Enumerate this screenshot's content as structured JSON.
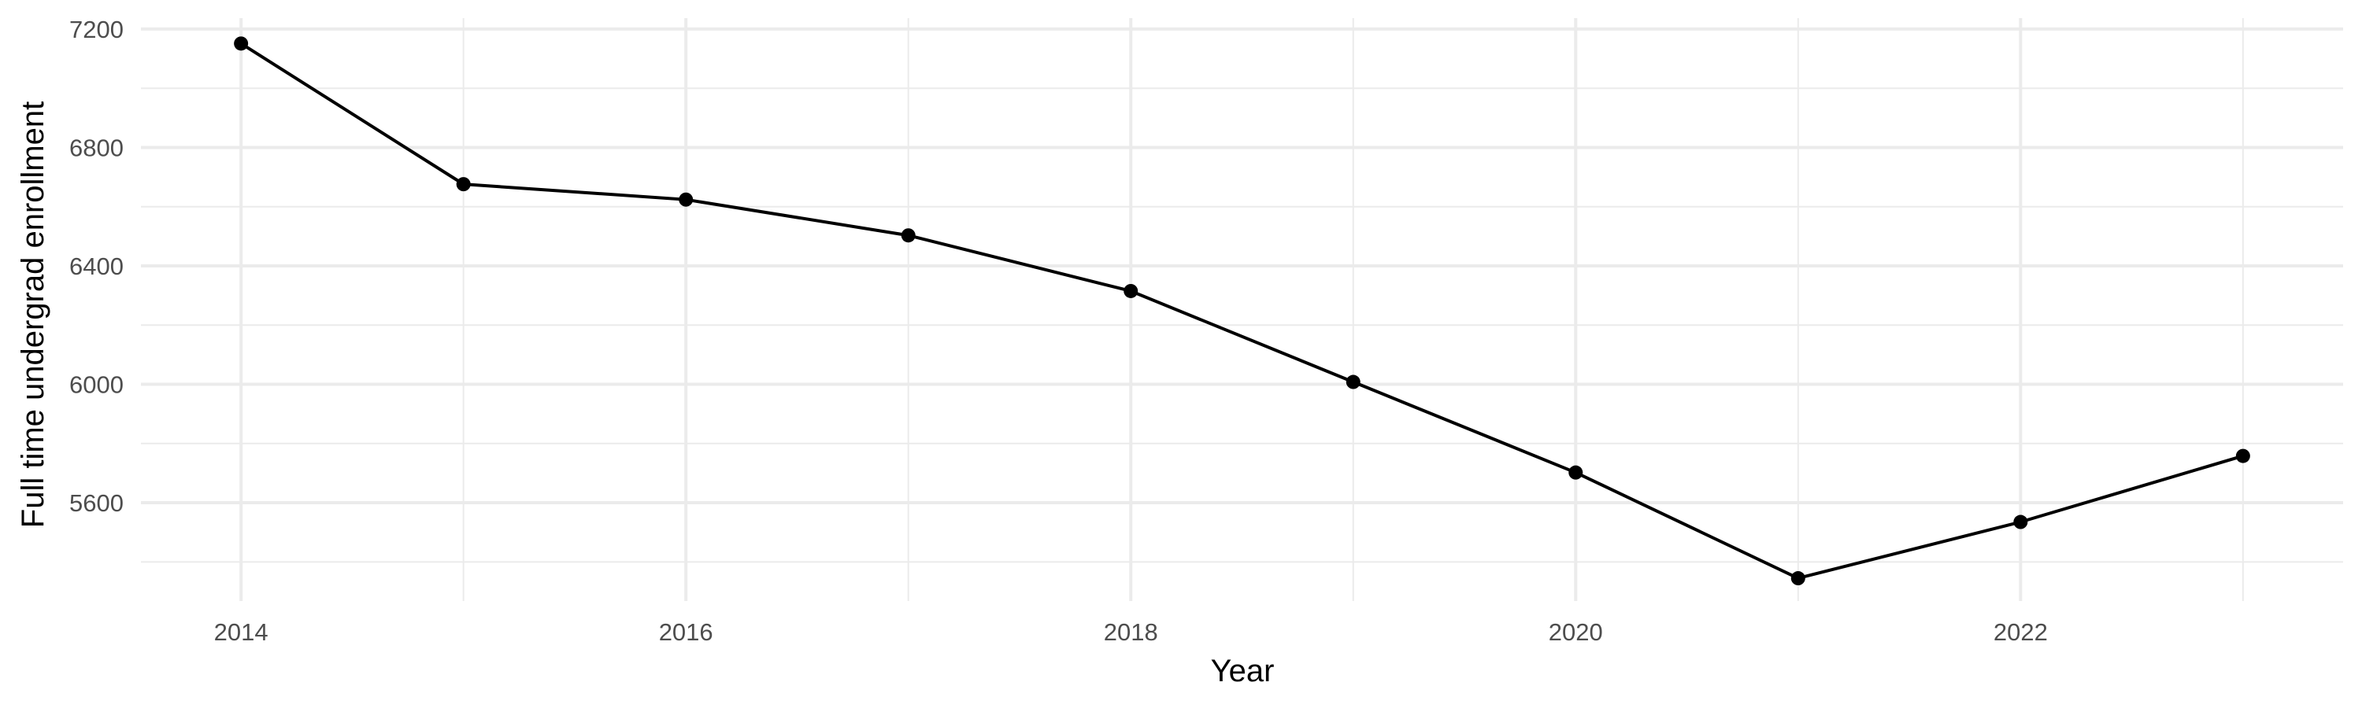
{
  "chart_data": {
    "type": "line",
    "title": "",
    "xlabel": "Year",
    "ylabel": "Full time undergrad enrollment",
    "x": [
      2014,
      2015,
      2016,
      2017,
      2018,
      2019,
      2020,
      2021,
      2022,
      2023
    ],
    "series": [
      {
        "values": [
          7151,
          6676,
          6624,
          6503,
          6315,
          6008,
          5702,
          5345,
          5535,
          5758
        ]
      }
    ],
    "xlim": [
      2013.55,
      2023.45
    ],
    "ylim": [
      5268,
      7237
    ],
    "x_ticks": [
      "2014",
      "2016",
      "2018",
      "2020",
      "2022"
    ],
    "y_ticks": [
      "5600",
      "6000",
      "6400",
      "6800",
      "7200"
    ],
    "grid": true,
    "line_color": "#000000",
    "grid_color": "#ebebeb",
    "markers": true
  }
}
